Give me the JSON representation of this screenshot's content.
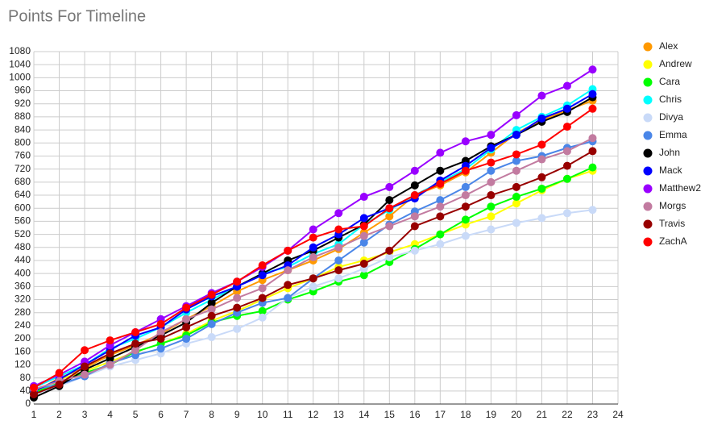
{
  "chart_data": {
    "type": "line",
    "title": "Points For Timeline",
    "x": [
      1,
      2,
      3,
      4,
      5,
      6,
      7,
      8,
      9,
      10,
      11,
      12,
      13,
      14,
      15,
      16,
      17,
      18,
      19,
      20,
      21,
      22,
      23
    ],
    "xlim": [
      1,
      24
    ],
    "xticks": [
      1,
      2,
      3,
      4,
      5,
      6,
      7,
      8,
      9,
      10,
      11,
      12,
      13,
      14,
      15,
      16,
      17,
      18,
      19,
      20,
      21,
      22,
      23,
      24
    ],
    "ylim": [
      0,
      1080
    ],
    "yticks": [
      0,
      40,
      80,
      120,
      160,
      200,
      240,
      280,
      320,
      360,
      400,
      440,
      480,
      520,
      560,
      600,
      640,
      680,
      720,
      760,
      800,
      840,
      880,
      920,
      960,
      1000,
      1040,
      1080
    ],
    "grid": true,
    "legend": "right",
    "series": [
      {
        "name": "Alex",
        "color": "#ff9900",
        "values": [
          35,
          80,
          110,
          150,
          180,
          215,
          260,
          300,
          345,
          380,
          410,
          440,
          475,
          525,
          575,
          640,
          670,
          710,
          770,
          830,
          870,
          900,
          930
        ]
      },
      {
        "name": "Andrew",
        "color": "#ffff00",
        "values": [
          40,
          75,
          100,
          130,
          160,
          185,
          215,
          255,
          285,
          320,
          355,
          385,
          420,
          440,
          465,
          490,
          520,
          550,
          575,
          615,
          655,
          690,
          715
        ]
      },
      {
        "name": "Cara",
        "color": "#00ff00",
        "values": [
          35,
          65,
          95,
          120,
          160,
          185,
          210,
          250,
          270,
          285,
          320,
          345,
          375,
          395,
          435,
          475,
          520,
          565,
          605,
          635,
          660,
          690,
          725
        ]
      },
      {
        "name": "Chris",
        "color": "#00ffff",
        "values": [
          50,
          85,
          120,
          170,
          200,
          235,
          280,
          320,
          360,
          400,
          420,
          460,
          490,
          550,
          595,
          640,
          680,
          720,
          780,
          840,
          880,
          915,
          965
        ]
      },
      {
        "name": "Divya",
        "color": "#c9daf8",
        "values": [
          30,
          55,
          85,
          115,
          135,
          155,
          185,
          205,
          230,
          265,
          325,
          360,
          385,
          415,
          450,
          470,
          490,
          515,
          535,
          555,
          570,
          585,
          595
        ]
      },
      {
        "name": "Emma",
        "color": "#4a86e8",
        "values": [
          45,
          60,
          85,
          125,
          150,
          170,
          200,
          245,
          280,
          310,
          325,
          385,
          440,
          495,
          550,
          590,
          625,
          665,
          715,
          745,
          760,
          785,
          805
        ]
      },
      {
        "name": "John",
        "color": "#000000",
        "values": [
          20,
          55,
          105,
          140,
          175,
          210,
          250,
          310,
          360,
          400,
          440,
          470,
          510,
          550,
          625,
          670,
          715,
          745,
          790,
          825,
          865,
          895,
          940
        ]
      },
      {
        "name": "Mack",
        "color": "#0000ff",
        "values": [
          40,
          75,
          120,
          165,
          210,
          235,
          290,
          330,
          360,
          395,
          425,
          480,
          520,
          570,
          600,
          630,
          685,
          730,
          785,
          825,
          875,
          905,
          950
        ]
      },
      {
        "name": "Matthew2",
        "color": "#9900ff",
        "values": [
          55,
          90,
          130,
          180,
          220,
          260,
          300,
          340,
          375,
          420,
          470,
          535,
          585,
          635,
          665,
          715,
          770,
          805,
          825,
          885,
          945,
          975,
          1025
        ]
      },
      {
        "name": "Morgs",
        "color": "#c27ba0",
        "values": [
          45,
          70,
          90,
          120,
          165,
          220,
          260,
          290,
          325,
          355,
          410,
          450,
          480,
          515,
          545,
          575,
          605,
          640,
          680,
          715,
          750,
          775,
          815
        ]
      },
      {
        "name": "Travis",
        "color": "#980000",
        "values": [
          30,
          60,
          115,
          155,
          185,
          200,
          235,
          270,
          295,
          325,
          365,
          385,
          410,
          430,
          470,
          545,
          575,
          605,
          640,
          665,
          695,
          730,
          775
        ]
      },
      {
        "name": "ZachA",
        "color": "#ff0000",
        "values": [
          50,
          95,
          165,
          195,
          220,
          245,
          295,
          335,
          375,
          425,
          470,
          510,
          535,
          545,
          600,
          640,
          675,
          715,
          740,
          765,
          795,
          850,
          905
        ]
      }
    ]
  }
}
